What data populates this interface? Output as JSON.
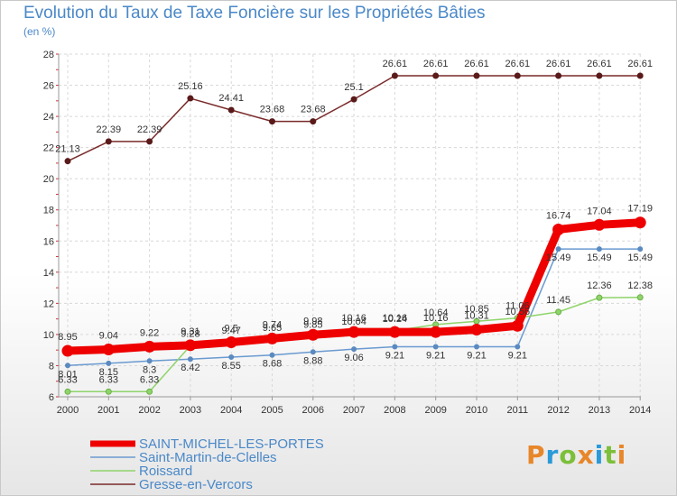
{
  "header": {
    "title": "Evolution du Taux de Taxe Foncière sur les Propriétés Bâties",
    "unit": "(en %)"
  },
  "logo": {
    "letters": [
      "P",
      "r",
      "o",
      "x",
      "i",
      "t",
      "i"
    ],
    "colors": [
      "#e8862a",
      "#2a9ad8",
      "#7cbf3a",
      "#e8862a",
      "#2a9ad8",
      "#7cbf3a",
      "#e8862a"
    ]
  },
  "chart_data": {
    "type": "line",
    "title": "Evolution du Taux de Taxe Foncière sur les Propriétés Bâties",
    "ylabel": "(en %)",
    "xlabel": "",
    "ylim": [
      6,
      28
    ],
    "yticks": [
      6,
      8,
      10,
      12,
      14,
      16,
      18,
      20,
      22,
      24,
      26,
      28
    ],
    "grid": true,
    "categories": [
      "2000",
      "2001",
      "2002",
      "2003",
      "2004",
      "2005",
      "2006",
      "2007",
      "2008",
      "2009",
      "2010",
      "2011",
      "2012",
      "2013",
      "2014"
    ],
    "series": [
      {
        "name": "Gresse-en-Vercors",
        "color": "#7a2a2a",
        "values": [
          21.13,
          22.39,
          22.39,
          25.16,
          24.41,
          23.68,
          23.68,
          25.1,
          26.61,
          26.61,
          26.61,
          26.61,
          26.61,
          26.61,
          26.61
        ]
      },
      {
        "name": "Saint-Martin-de-Clelles",
        "color": "#6a9ad0",
        "values": [
          8.01,
          8.15,
          8.3,
          8.42,
          8.55,
          8.68,
          8.88,
          9.06,
          9.21,
          9.21,
          9.21,
          9.21,
          15.49,
          15.49,
          15.49
        ]
      },
      {
        "name": "Roissard",
        "color": "#8fd46a",
        "values": [
          6.33,
          6.33,
          6.33,
          9.28,
          9.47,
          9.65,
          9.85,
          10.04,
          10.24,
          10.64,
          10.85,
          11.06,
          11.45,
          12.36,
          12.38
        ]
      },
      {
        "name": "SAINT-MICHEL-LES-PORTES",
        "color": "#ee0000",
        "values": [
          8.95,
          9.04,
          9.22,
          9.31,
          9.5,
          9.74,
          9.98,
          10.16,
          10.16,
          10.16,
          10.31,
          10.56,
          16.74,
          17.04,
          17.19
        ]
      }
    ],
    "legend_order": [
      "SAINT-MICHEL-LES-PORTES",
      "Saint-Martin-de-Clelles",
      "Roissard",
      "Gresse-en-Vercors"
    ],
    "legend_position": "bottom-left"
  }
}
